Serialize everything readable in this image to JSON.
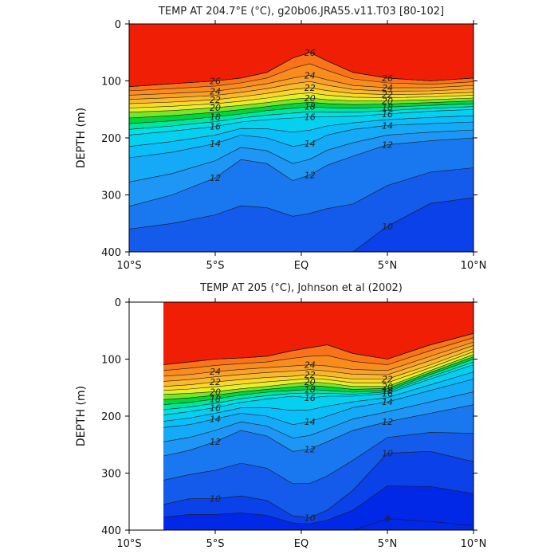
{
  "chart_data": [
    {
      "type": "contour",
      "title": "TEMP AT 204.7°E (°C), g20b06.JRA55.v11.T03 [80-102]",
      "xlabel": "",
      "ylabel": "DEPTH (m)",
      "xlim": [
        -10,
        10
      ],
      "ylim": [
        0,
        400
      ],
      "y_inverted": true,
      "x_ticks": [
        -10,
        -5,
        0,
        5,
        10
      ],
      "x_tick_labels": [
        "10°S",
        "5°S",
        "EQ",
        "5°N",
        "10°N"
      ],
      "y_ticks": [
        0,
        100,
        200,
        300,
        400
      ],
      "y_tick_labels": [
        "0",
        "100",
        "200",
        "300",
        "400"
      ],
      "data_x_range": [
        -10,
        10
      ],
      "levels": [
        10,
        11,
        12,
        13,
        14,
        15,
        16,
        17,
        18,
        19,
        20,
        21,
        22,
        23,
        24,
        25,
        26,
        27,
        28
      ],
      "contour_labels": [
        "10",
        "12",
        "12",
        "12",
        "14",
        "14",
        "14",
        "16",
        "16",
        "16",
        "18",
        "18",
        "18",
        "20",
        "20",
        "20",
        "22",
        "22",
        "22",
        "24",
        "24",
        "24",
        "26",
        "26",
        "26",
        "26"
      ],
      "isotherm_depths": {
        "x": [
          -10,
          -7.5,
          -5,
          -3.5,
          -2,
          -0.5,
          0.5,
          1.5,
          3,
          5,
          7.5,
          10
        ],
        "26": [
          110,
          105,
          100,
          95,
          85,
          60,
          50,
          65,
          85,
          95,
          100,
          95
        ],
        "24": [
          125,
          122,
          118,
          112,
          105,
          95,
          90,
          98,
          108,
          112,
          112,
          108
        ],
        "22": [
          140,
          137,
          133,
          128,
          122,
          115,
          112,
          117,
          122,
          124,
          123,
          120
        ],
        "20": [
          155,
          152,
          147,
          143,
          138,
          132,
          130,
          133,
          135,
          135,
          133,
          130
        ],
        "18": [
          175,
          170,
          163,
          158,
          152,
          148,
          145,
          147,
          148,
          146,
          143,
          140
        ],
        "16": [
          195,
          188,
          180,
          172,
          168,
          165,
          163,
          163,
          162,
          158,
          153,
          150
        ],
        "14": [
          235,
          225,
          210,
          195,
          200,
          215,
          210,
          195,
          185,
          178,
          175,
          172
        ],
        "12": [
          320,
          300,
          270,
          238,
          245,
          275,
          265,
          248,
          232,
          212,
          205,
          200
        ],
        "10": [
          400,
          400,
          400,
          400,
          400,
          400,
          400,
          400,
          400,
          355,
          315,
          305
        ]
      }
    },
    {
      "type": "contour",
      "title": "TEMP AT 205 (°C), Johnson et al (2002)",
      "xlabel": "",
      "ylabel": "DEPTH (m)",
      "xlim": [
        -10,
        10
      ],
      "ylim": [
        0,
        400
      ],
      "y_inverted": true,
      "x_ticks": [
        -10,
        -5,
        0,
        5,
        10
      ],
      "x_tick_labels": [
        "10°S",
        "5°S",
        "EQ",
        "5°N",
        "10°N"
      ],
      "y_ticks": [
        0,
        100,
        200,
        300,
        400
      ],
      "y_tick_labels": [
        "0",
        "100",
        "200",
        "300",
        "400"
      ],
      "data_x_range": [
        -8,
        10
      ],
      "levels": [
        8,
        9,
        10,
        11,
        12,
        13,
        14,
        15,
        16,
        17,
        18,
        19,
        20,
        21,
        22,
        23,
        24,
        25,
        26,
        27,
        28
      ],
      "contour_labels": [
        "10",
        "10",
        "10",
        "12",
        "12",
        "12",
        "14",
        "14",
        "14",
        "16",
        "16",
        "16",
        "18",
        "18",
        "20",
        "20",
        "22",
        "22",
        "24",
        "24",
        "24",
        "26",
        "26",
        "26"
      ],
      "isotherm_depths": {
        "x": [
          -8,
          -6.5,
          -5,
          -3.5,
          -2,
          -0.5,
          0.5,
          1.5,
          3,
          5,
          7.5,
          10
        ],
        "26": [
          110,
          105,
          100,
          98,
          95,
          85,
          80,
          75,
          90,
          100,
          75,
          55
        ],
        "24": [
          130,
          127,
          122,
          118,
          115,
          112,
          110,
          112,
          118,
          120,
          95,
          70
        ],
        "22": [
          148,
          145,
          140,
          136,
          132,
          130,
          127,
          130,
          135,
          135,
          110,
          82
        ],
        "20": [
          162,
          160,
          157,
          152,
          148,
          143,
          140,
          142,
          148,
          148,
          120,
          92
        ],
        "18": [
          180,
          176,
          170,
          163,
          158,
          155,
          153,
          155,
          158,
          155,
          127,
          100
        ],
        "16": [
          198,
          192,
          185,
          176,
          170,
          165,
          168,
          165,
          165,
          160,
          135,
          110
        ],
        "14": [
          220,
          215,
          205,
          195,
          200,
          215,
          210,
          200,
          185,
          175,
          155,
          135
        ],
        "12": [
          270,
          260,
          245,
          225,
          235,
          262,
          258,
          245,
          225,
          210,
          195,
          180
        ],
        "10": [
          355,
          345,
          345,
          340,
          348,
          375,
          378,
          365,
          330,
          265,
          262,
          280
        ],
        "8": [
          400,
          400,
          400,
          400,
          400,
          400,
          400,
          400,
          400,
          380,
          385,
          392
        ]
      }
    }
  ]
}
